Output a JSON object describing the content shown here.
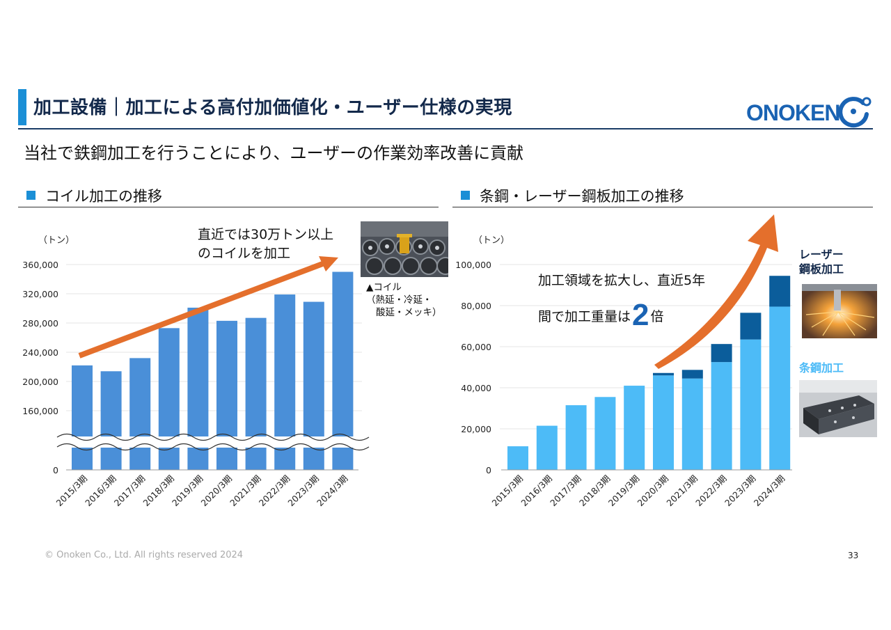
{
  "header": {
    "title": "加工設備｜加工による高付加価値化・ユーザー仕様の実現",
    "logo_text": "ONOKEN",
    "subtitle": "当社で鉄鋼加工を行うことにより、ユーザーの作業効率改善に貢献"
  },
  "left_section": {
    "heading": "コイル加工の推移",
    "note_line1": "直近では30万トン以上",
    "note_line2": "のコイルを加工",
    "photo_caption_line1": "▲コイル",
    "photo_caption_line2": "（熱延・冷延・",
    "photo_caption_line3": "酸延・メッキ）"
  },
  "right_section": {
    "heading": "条鋼・レーザー鋼板加工の推移",
    "note_line1": "加工領域を拡大し、直近5年",
    "note_line2_prefix": "間で加工重量は",
    "note_big": "2",
    "note_suffix": "倍",
    "laser_label_line1": "レーザー",
    "laser_label_line2": "鋼板加工",
    "bar_label": "条鋼加工"
  },
  "colors": {
    "accent": "#1b8fd6",
    "title_navy": "#13294b",
    "coil_bar": "#4a8fd8",
    "bar_steel": "#4dbbf7",
    "laser": "#0b5d9b",
    "arrow": "#e46f2c"
  },
  "chart_data": [
    {
      "type": "bar",
      "title": "コイル加工の推移",
      "ylabel": "（トン）",
      "categories": [
        "2015/3期",
        "2016/3期",
        "2017/3期",
        "2018/3期",
        "2019/3期",
        "2020/3期",
        "2021/3期",
        "2022/3期",
        "2023/3期",
        "2024/3期"
      ],
      "values": [
        222000,
        214000,
        232000,
        273000,
        301000,
        283000,
        287000,
        319000,
        309000,
        350000
      ],
      "ylim": [
        0,
        360000
      ],
      "axis_break": "between 0 and 160,000",
      "yticks": [
        0,
        160000,
        200000,
        240000,
        280000,
        320000,
        360000
      ],
      "ytick_labels": [
        "0",
        "160,000",
        "200,000",
        "240,000",
        "280,000",
        "320,000",
        "360,000"
      ],
      "grid": true,
      "trend_arrow": "up"
    },
    {
      "type": "bar",
      "stacked": true,
      "title": "条鋼・レーザー鋼板加工の推移",
      "ylabel": "（トン）",
      "categories": [
        "2015/3期",
        "2016/3期",
        "2017/3期",
        "2018/3期",
        "2019/3期",
        "2020/3期",
        "2021/3期",
        "2022/3期",
        "2023/3期",
        "2024/3期"
      ],
      "series": [
        {
          "name": "条鋼加工",
          "values": [
            11500,
            21500,
            31500,
            35500,
            41000,
            46000,
            44500,
            52500,
            63500,
            79500
          ]
        },
        {
          "name": "レーザー鋼板加工",
          "values": [
            0,
            0,
            0,
            0,
            0,
            1200,
            4200,
            8800,
            13000,
            15000
          ]
        }
      ],
      "ylim": [
        0,
        100000
      ],
      "yticks": [
        0,
        20000,
        40000,
        60000,
        80000,
        100000
      ],
      "ytick_labels": [
        "0",
        "20,000",
        "40,000",
        "60,000",
        "80,000",
        "100,000"
      ],
      "grid": true,
      "trend_arrow": "up"
    }
  ],
  "footer": {
    "copyright": "© Onoken Co., Ltd. All rights reserved 2024",
    "page_number": "33"
  }
}
